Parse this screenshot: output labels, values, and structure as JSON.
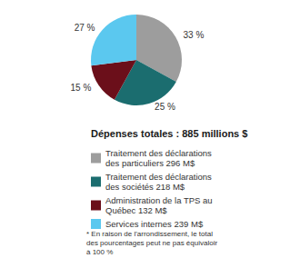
{
  "chart_data": {
    "type": "pie",
    "title": "Dépenses totales : 885 millions $",
    "categories": [
      "Traitement des déclarations des particuliers 296 M$",
      "Traitement des déclarations des sociétés 218 M$",
      "Administration de la TPS au Québec 132 M$",
      "Services internes 239 M$"
    ],
    "values": [
      33,
      25,
      15,
      27
    ],
    "value_labels": [
      "33 %",
      "25 %",
      "15 %",
      "27 %"
    ],
    "colors": [
      "#9d9d9d",
      "#1b6d6f",
      "#6b0f1a",
      "#5bc8ef"
    ],
    "data_labels": true,
    "legend": "bottom",
    "annotations": [
      "* En raison de l'arrondissement, le total des pourcentages peut ne pas équivaloir à 100 %"
    ]
  }
}
